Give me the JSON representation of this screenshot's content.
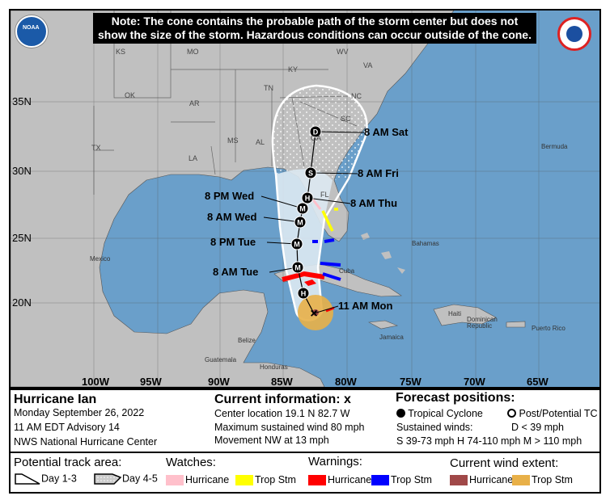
{
  "map": {
    "note": "Note: The cone contains the probable path of the storm center but does not show the size of the storm. Hazardous conditions can occur outside of the cone.",
    "logos": {
      "left": "NOAA",
      "right": "NATIONAL WEATHER SERVICE"
    },
    "lat_labels": [
      "35N",
      "30N",
      "25N",
      "20N"
    ],
    "lon_labels": [
      "100W",
      "95W",
      "90W",
      "85W",
      "80W",
      "75W",
      "70W",
      "65W"
    ],
    "states": [
      "KS",
      "MO",
      "KY",
      "WV",
      "VA",
      "OK",
      "AR",
      "TN",
      "NC",
      "SC",
      "MS",
      "AL",
      "GA",
      "TX",
      "LA",
      "FL"
    ],
    "places": {
      "bermuda": "Bermuda",
      "bahamas": "Bahamas",
      "mexico": "Mexico",
      "cuba": "Cuba",
      "haiti": "Haiti",
      "dominican": "Dominican Republic",
      "puerto_rico": "Puerto Rico",
      "jamaica": "Jamaica",
      "belize": "Belize",
      "guatemala": "Guatemala",
      "honduras": "Honduras"
    },
    "track": [
      {
        "label": "11 AM Mon",
        "marker": "X"
      },
      {
        "label": "",
        "marker": "H"
      },
      {
        "label": "8 AM Tue",
        "marker": "M"
      },
      {
        "label": "8 PM Tue",
        "marker": "M"
      },
      {
        "label": "8 AM Wed",
        "marker": "M"
      },
      {
        "label": "8 PM Wed",
        "marker": "M"
      },
      {
        "label": "8 AM Thu",
        "marker": "H"
      },
      {
        "label": "8 AM Fri",
        "marker": "S"
      },
      {
        "label": "8 AM Sat",
        "marker": "D"
      }
    ],
    "colors": {
      "ocean": "#6a9fca",
      "land": "#c0c0c0",
      "cone": "#dde9f2",
      "hurricane_warning": "#ff0000",
      "ts_warning": "#0000ff",
      "hurricane_watch": "#ffc0cb",
      "ts_watch": "#ffff00",
      "hurricane_wind": "#a04848",
      "ts_wind": "#e8b048"
    }
  },
  "info": {
    "storm": "Hurricane Ian",
    "date": "Monday September 26, 2022",
    "advisory": "11 AM EDT Advisory 14",
    "center": "NWS National Hurricane Center",
    "current_title": "Current information: x",
    "location": "Center location 19.1 N 82.7 W",
    "wind": "Maximum sustained wind 80 mph",
    "movement": "Movement NW at 13 mph",
    "forecast_title": "Forecast positions:",
    "tc": "Tropical Cyclone",
    "ptc": "Post/Potential TC",
    "sustained": "Sustained winds:",
    "d": "D < 39 mph",
    "shm": "S 39-73 mph  H 74-110 mph  M > 110 mph"
  },
  "legend": {
    "track_title": "Potential track area:",
    "day13": "Day 1-3",
    "day45": "Day 4-5",
    "watches_title": "Watches:",
    "warnings_title": "Warnings:",
    "wind_title": "Current wind extent:",
    "hurricane": "Hurricane",
    "tropstm": "Trop Stm"
  }
}
